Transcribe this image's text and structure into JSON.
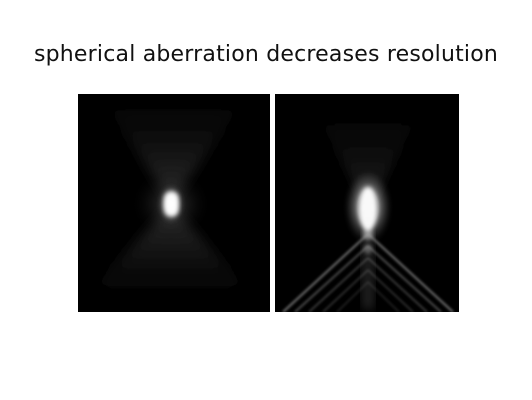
{
  "slide": {
    "title": "spherical aberration decreases resolution"
  },
  "images": [
    {
      "name": "psf-without-aberration",
      "description_hidden": true
    },
    {
      "name": "psf-with-spherical-aberration",
      "description_hidden": true
    }
  ]
}
